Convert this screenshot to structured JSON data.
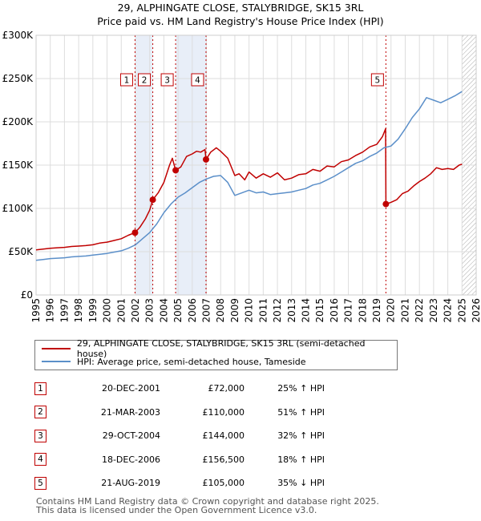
{
  "title": "29, ALPHINGATE CLOSE, STALYBRIDGE, SK15 3RL",
  "subtitle": "Price paid vs. HM Land Registry's House Price Index (HPI)",
  "legend": {
    "property": "29, ALPHINGATE CLOSE, STALYBRIDGE, SK15 3RL (semi-detached house)",
    "hpi": "HPI: Average price, semi-detached house, Tameside"
  },
  "sales": [
    {
      "num": "1",
      "date": "20-DEC-2001",
      "price": "£72,000",
      "hpi": "25% ↑ HPI"
    },
    {
      "num": "2",
      "date": "21-MAR-2003",
      "price": "£110,000",
      "hpi": "51% ↑ HPI"
    },
    {
      "num": "3",
      "date": "29-OCT-2004",
      "price": "£144,000",
      "hpi": "32% ↑ HPI"
    },
    {
      "num": "4",
      "date": "18-DEC-2006",
      "price": "£156,500",
      "hpi": "18% ↑ HPI"
    },
    {
      "num": "5",
      "date": "21-AUG-2019",
      "price": "£105,000",
      "hpi": "35% ↓ HPI"
    }
  ],
  "footer": {
    "line1": "Contains HM Land Registry data © Crown copyright and database right 2025.",
    "line2": "This data is licensed under the Open Government Licence v3.0."
  },
  "colors": {
    "property": "#c00000",
    "hpi": "#5b8fc9",
    "shade": "#e8eef8",
    "grid": "#dddddd",
    "hatch": "#aaaaaa"
  },
  "chart_data": {
    "type": "line",
    "xlabel": "",
    "ylabel": "",
    "xlim": [
      1995,
      2026
    ],
    "ylim": [
      0,
      300000
    ],
    "y_ticks": [
      0,
      50000,
      100000,
      150000,
      200000,
      250000,
      300000
    ],
    "y_tick_labels": [
      "£0",
      "£50K",
      "£100K",
      "£150K",
      "£200K",
      "£250K",
      "£300K"
    ],
    "x_ticks": [
      1995,
      1996,
      1997,
      1998,
      1999,
      2000,
      2001,
      2002,
      2003,
      2004,
      2005,
      2006,
      2007,
      2008,
      2009,
      2010,
      2011,
      2012,
      2013,
      2014,
      2015,
      2016,
      2017,
      2018,
      2019,
      2020,
      2021,
      2022,
      2023,
      2024,
      2025,
      2026
    ],
    "x_tick_labels": [
      "1995",
      "1996",
      "1997",
      "1998",
      "1999",
      "2000",
      "2001",
      "2002",
      "2003",
      "2004",
      "2005",
      "2006",
      "2007",
      "2008",
      "2009",
      "2010",
      "2011",
      "2012",
      "2013",
      "2014",
      "2015",
      "2016",
      "2017",
      "2018",
      "2019",
      "2020",
      "2021",
      "2022",
      "2023",
      "2024",
      "2025",
      "2026"
    ],
    "grid": true,
    "hatched_from": 2025.0,
    "shaded_spans": [
      [
        2001.97,
        2003.22
      ],
      [
        2004.83,
        2006.97
      ]
    ],
    "sales": [
      {
        "label": "1",
        "x": 2001.97,
        "y": 72000
      },
      {
        "label": "2",
        "x": 2003.22,
        "y": 110000
      },
      {
        "label": "3",
        "x": 2004.83,
        "y": 144000
      },
      {
        "label": "4",
        "x": 2006.97,
        "y": 156500
      },
      {
        "label": "5",
        "x": 2019.64,
        "y": 105000
      }
    ],
    "series": [
      {
        "key": "property",
        "x": [
          1995.0,
          1995.5,
          1996.0,
          1996.5,
          1997.0,
          1997.5,
          1998.0,
          1998.5,
          1999.0,
          1999.5,
          2000.0,
          2000.5,
          2001.0,
          2001.5,
          2001.97,
          2002.3,
          2002.7,
          2003.0,
          2003.22,
          2003.6,
          2004.0,
          2004.4,
          2004.6,
          2004.83,
          2005.2,
          2005.6,
          2006.0,
          2006.3,
          2006.6,
          2006.9,
          2006.97,
          2007.3,
          2007.7,
          2008.0,
          2008.5,
          2009.0,
          2009.3,
          2009.7,
          2010.0,
          2010.5,
          2011.0,
          2011.5,
          2012.0,
          2012.5,
          2013.0,
          2013.5,
          2014.0,
          2014.5,
          2015.0,
          2015.5,
          2016.0,
          2016.5,
          2017.0,
          2017.5,
          2018.0,
          2018.5,
          2019.0,
          2019.4,
          2019.62,
          2019.64,
          2020.0,
          2020.4,
          2020.8,
          2021.2,
          2021.6,
          2022.0,
          2022.4,
          2022.8,
          2023.2,
          2023.6,
          2024.0,
          2024.4,
          2024.8,
          2025.0
        ],
        "values": [
          52000,
          53000,
          54000,
          54500,
          55000,
          56000,
          56500,
          57000,
          58000,
          60000,
          61000,
          63000,
          65000,
          69000,
          72000,
          78000,
          88000,
          98000,
          110000,
          118000,
          130000,
          150000,
          158000,
          144000,
          148000,
          160000,
          163000,
          166000,
          165000,
          168000,
          156500,
          165000,
          170000,
          166000,
          158000,
          138000,
          140000,
          133000,
          142000,
          135000,
          140000,
          136000,
          141000,
          133000,
          135000,
          139000,
          140000,
          145000,
          143000,
          149000,
          148000,
          154000,
          156000,
          161000,
          165000,
          171000,
          174000,
          183000,
          192000,
          105000,
          107000,
          110000,
          117000,
          120000,
          126000,
          131000,
          135000,
          140000,
          147000,
          145000,
          146000,
          145000,
          150000,
          151000
        ]
      },
      {
        "key": "hpi",
        "x": [
          1995.0,
          1995.5,
          1996.0,
          1996.5,
          1997.0,
          1997.5,
          1998.0,
          1998.5,
          1999.0,
          1999.5,
          2000.0,
          2000.5,
          2001.0,
          2001.5,
          2002.0,
          2002.5,
          2003.0,
          2003.5,
          2004.0,
          2004.5,
          2005.0,
          2005.5,
          2006.0,
          2006.5,
          2007.0,
          2007.5,
          2008.0,
          2008.5,
          2009.0,
          2009.5,
          2010.0,
          2010.5,
          2011.0,
          2011.5,
          2012.0,
          2012.5,
          2013.0,
          2013.5,
          2014.0,
          2014.5,
          2015.0,
          2015.5,
          2016.0,
          2016.5,
          2017.0,
          2017.5,
          2018.0,
          2018.5,
          2019.0,
          2019.5,
          2020.0,
          2020.5,
          2021.0,
          2021.5,
          2022.0,
          2022.5,
          2023.0,
          2023.5,
          2024.0,
          2024.5,
          2025.0
        ],
        "values": [
          40000,
          41000,
          42000,
          42500,
          43000,
          44000,
          44500,
          45000,
          46000,
          47000,
          48000,
          49500,
          51000,
          54000,
          58000,
          65000,
          72000,
          82000,
          95000,
          105000,
          113000,
          118000,
          124000,
          130000,
          134000,
          137000,
          138000,
          130000,
          115000,
          118000,
          121000,
          118000,
          119000,
          116000,
          117000,
          118000,
          119000,
          121000,
          123000,
          127000,
          129000,
          133000,
          137000,
          142000,
          147000,
          152000,
          155000,
          160000,
          164000,
          170000,
          172000,
          180000,
          192000,
          205000,
          215000,
          228000,
          225000,
          222000,
          226000,
          230000,
          235000
        ]
      }
    ]
  }
}
